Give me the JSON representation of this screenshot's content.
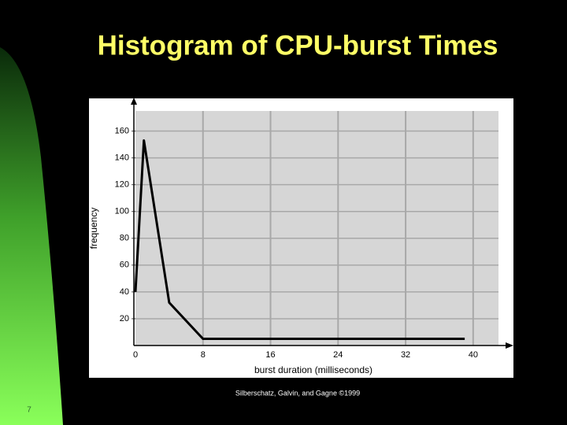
{
  "chart_data": {
    "type": "line",
    "title": "Histogram of CPU-burst Times",
    "x_label": "burst duration (milliseconds)",
    "y_label": "frequency",
    "x": [
      0,
      1,
      4,
      8,
      39
    ],
    "values": [
      40,
      153,
      32,
      5,
      5
    ],
    "color": "#000000",
    "xlim": [
      0,
      43
    ],
    "ylim": [
      0,
      175
    ],
    "xticks": [
      0,
      8,
      16,
      24,
      32,
      40
    ],
    "yticks": [
      20,
      40,
      60,
      80,
      100,
      120,
      140,
      160
    ],
    "grid": true
  },
  "slide": {
    "footer": "Silberschatz, Galvin, and Gagne ©1999",
    "page_number": "7"
  }
}
